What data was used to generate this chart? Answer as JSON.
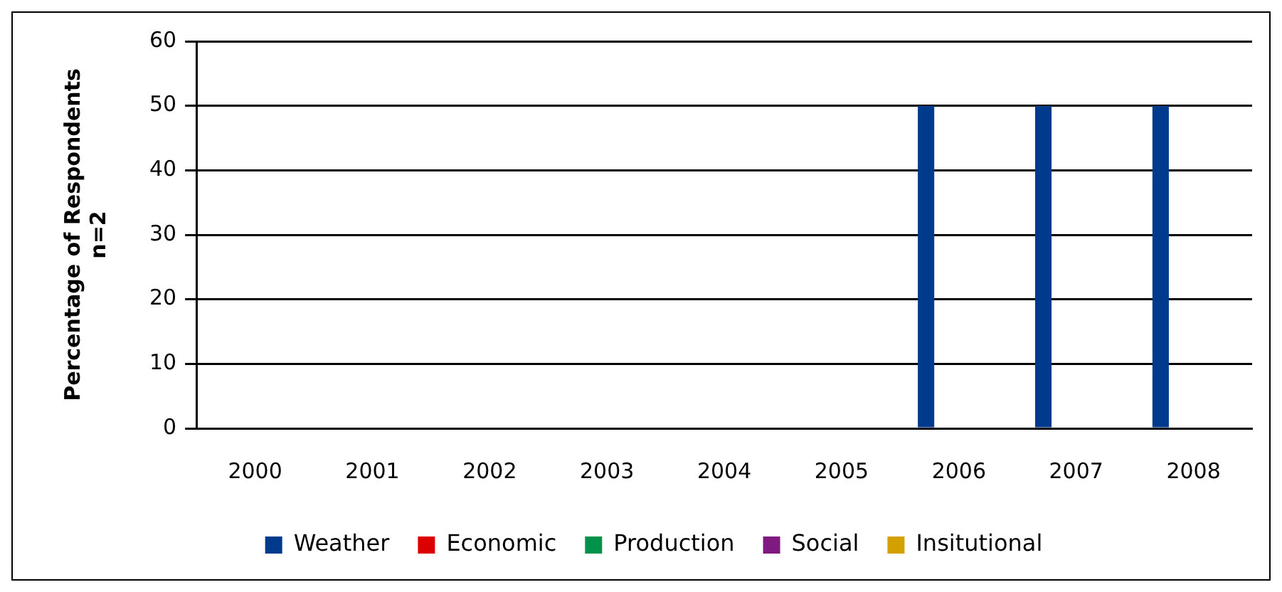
{
  "chart_data": {
    "type": "bar",
    "ylabel": "Percentage of Respondents\nn=2",
    "categories": [
      "2000",
      "2001",
      "2002",
      "2003",
      "2004",
      "2005",
      "2006",
      "2007",
      "2008"
    ],
    "series": [
      {
        "name": "Weather",
        "color": "#003a8c",
        "values": [
          0,
          0,
          0,
          0,
          0,
          0,
          50,
          50,
          50
        ]
      },
      {
        "name": "Economic",
        "color": "#dd0000",
        "values": [
          0,
          0,
          0,
          0,
          0,
          0,
          0,
          0,
          0
        ]
      },
      {
        "name": "Production",
        "color": "#00914a",
        "values": [
          0,
          0,
          0,
          0,
          0,
          0,
          0,
          0,
          0
        ]
      },
      {
        "name": "Social",
        "color": "#7e1a80",
        "values": [
          0,
          0,
          0,
          0,
          0,
          0,
          0,
          0,
          0
        ]
      },
      {
        "name": "Insitutional",
        "color": "#d4a000",
        "values": [
          0,
          0,
          0,
          0,
          0,
          0,
          0,
          0,
          0
        ]
      }
    ],
    "ylim": [
      0,
      60
    ],
    "yticks": [
      0,
      10,
      20,
      30,
      40,
      50,
      60
    ],
    "grid": "y",
    "legend": "bottom"
  }
}
